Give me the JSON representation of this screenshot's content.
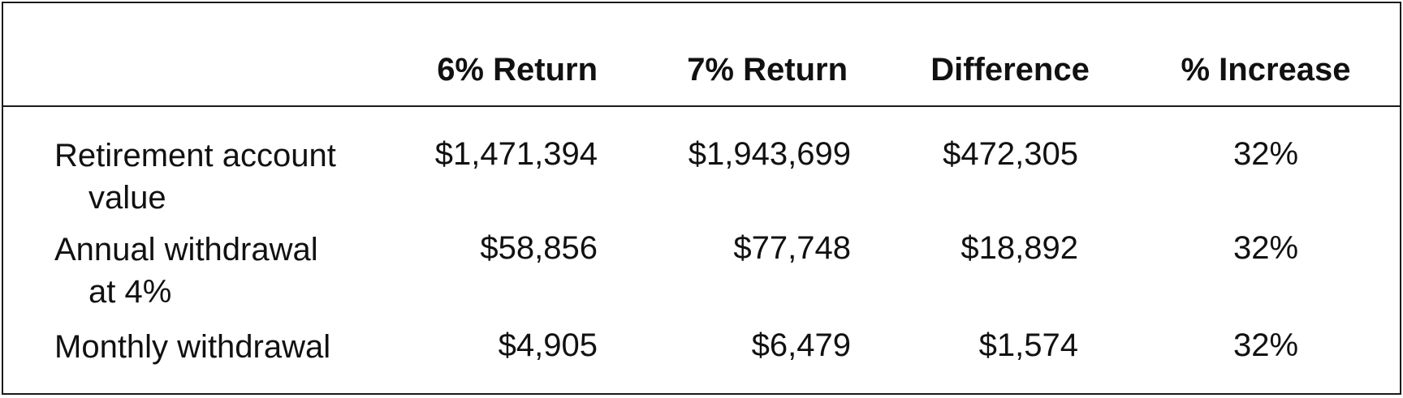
{
  "table": {
    "headers": [
      "",
      "6% Return",
      "7% Return",
      "Difference",
      "% Increase"
    ],
    "rows": [
      {
        "label_line1": "Retirement account",
        "label_line2": "value",
        "values": [
          "$1,471,394",
          "$1,943,699",
          "$472,305",
          "32%"
        ]
      },
      {
        "label_line1": "Annual withdrawal",
        "label_line2": "at 4%",
        "values": [
          "$58,856",
          "$77,748",
          "$18,892",
          "32%"
        ]
      },
      {
        "label_line1": "Monthly withdrawal",
        "label_line2": "",
        "values": [
          "$4,905",
          "$6,479",
          "$1,574",
          "32%"
        ]
      }
    ]
  }
}
